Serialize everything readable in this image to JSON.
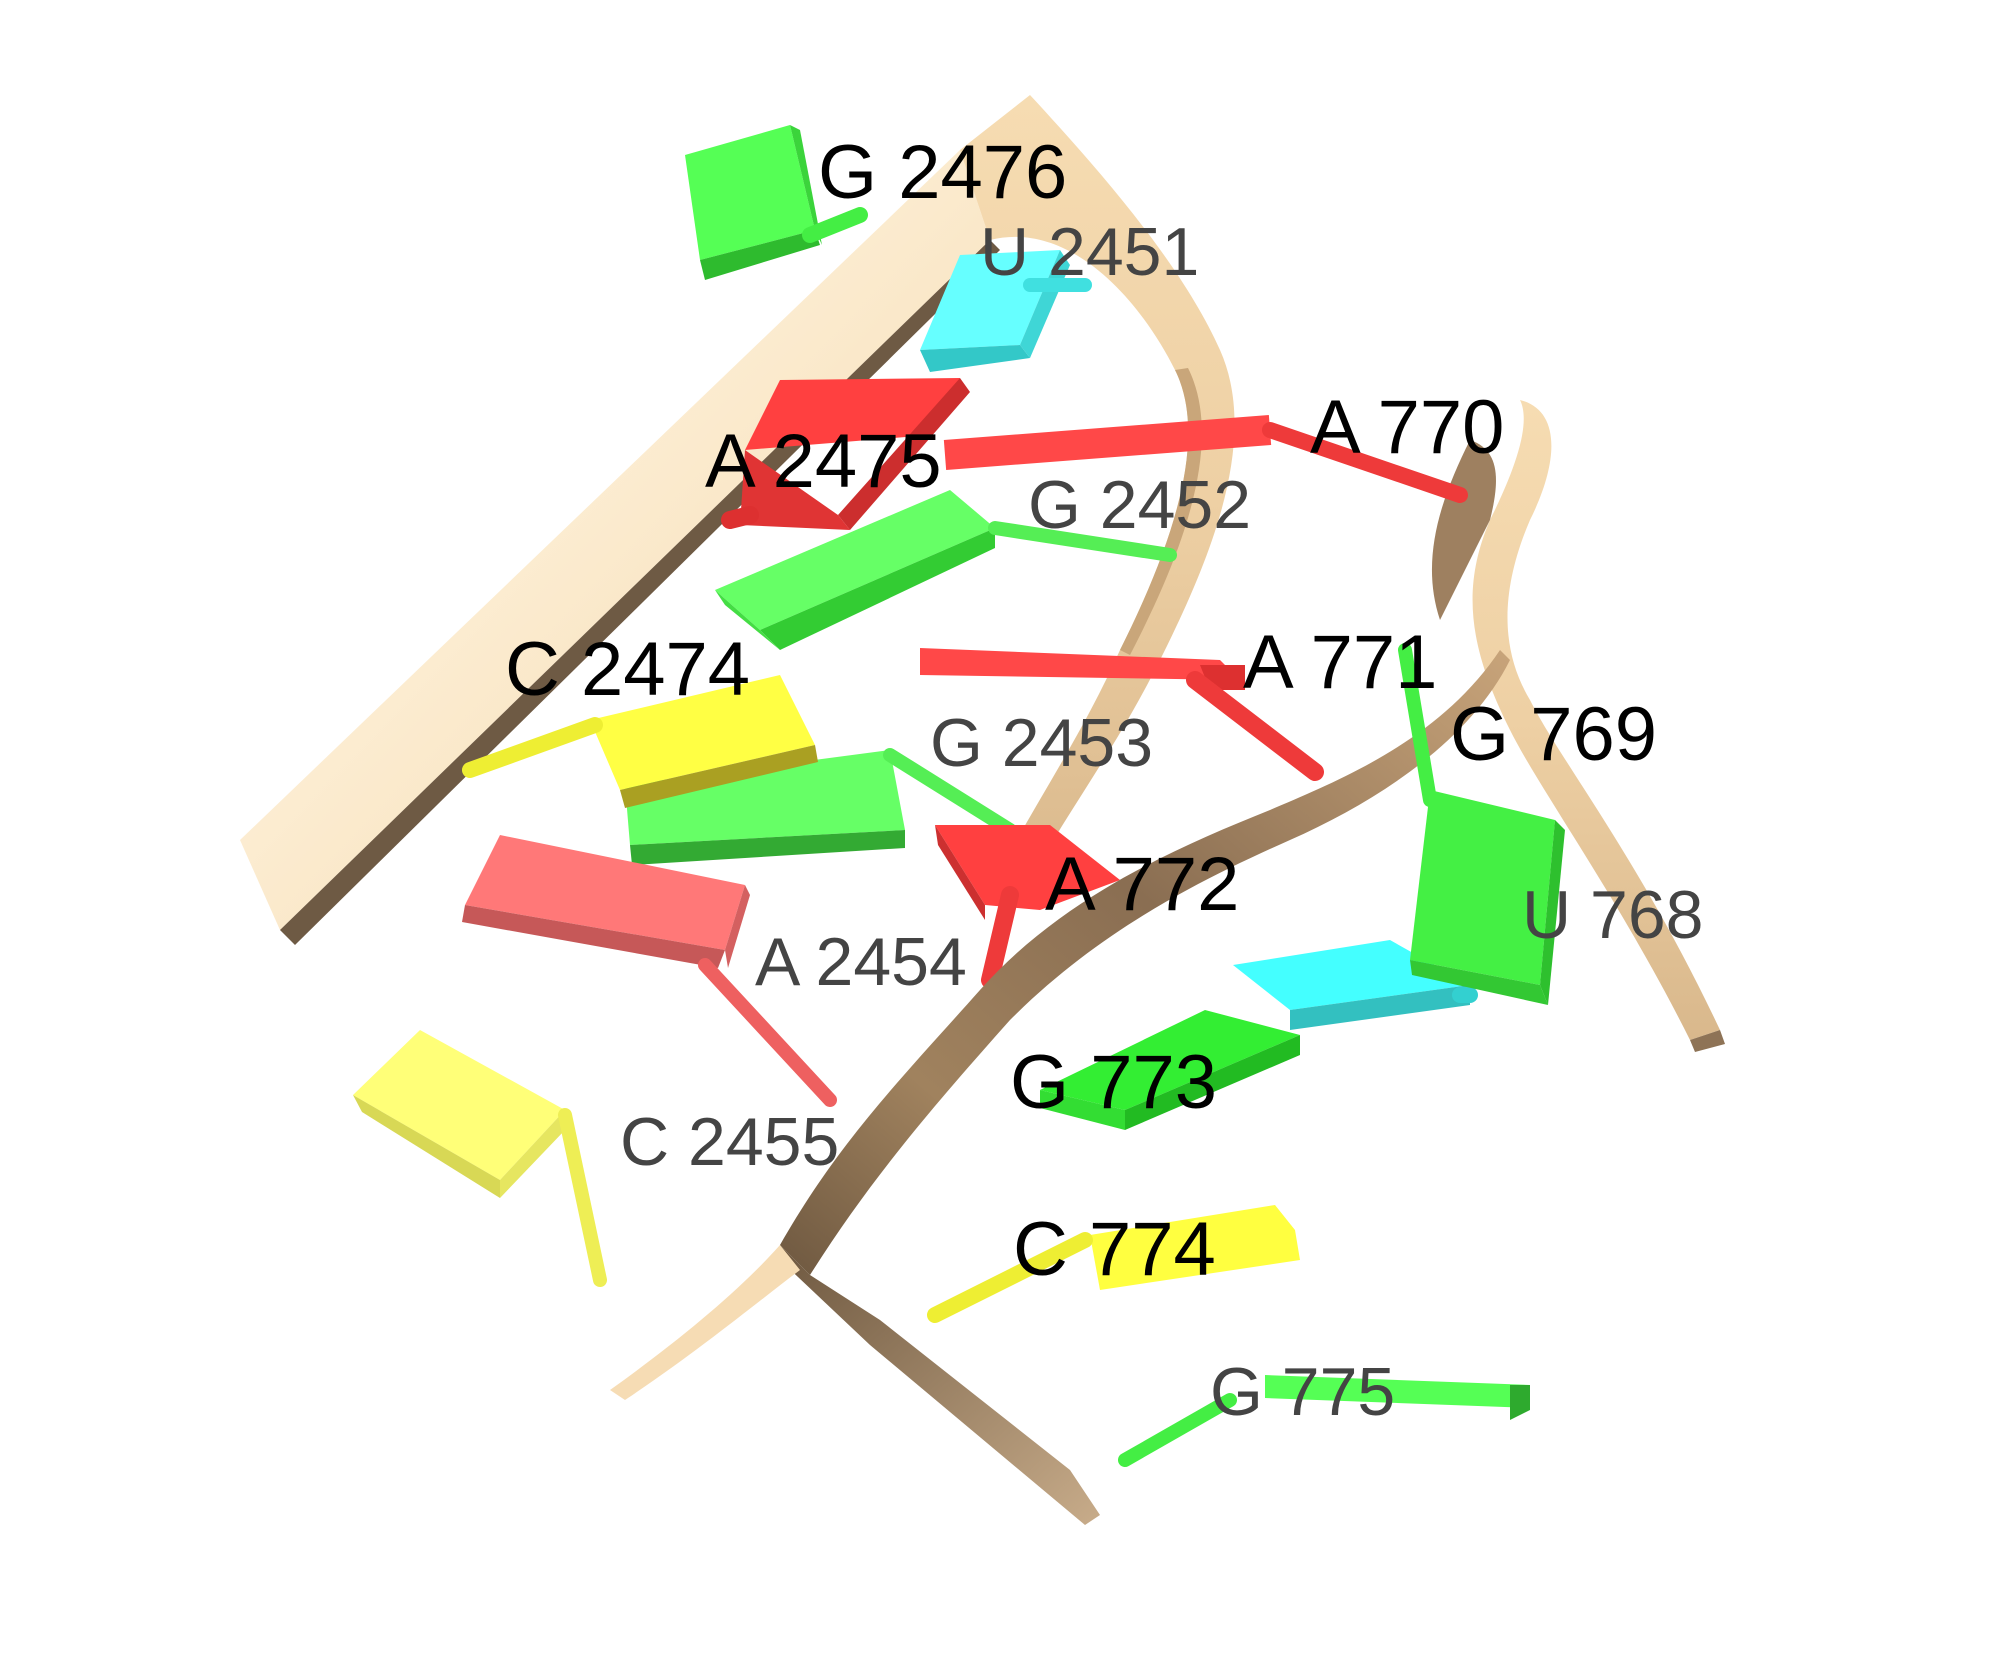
{
  "colors": {
    "A": "#ff4040",
    "G": "#40f040",
    "C": "#ffff40",
    "U": "#40ffff",
    "A_back": "#ff7070",
    "C_back": "#ffff70",
    "G_back": "#60ff60",
    "backbone_light": "#f8deb4",
    "backbone_dark": "#7a6248",
    "label_front": "#000000",
    "label_back": "#444444"
  },
  "labels": {
    "G2476": "G 2476",
    "U2451": "U 2451",
    "A2475": "A 2475",
    "A770": "A 770",
    "G2452": "G 2452",
    "C2474": "C 2474",
    "A771": "A 771",
    "G2453": "G 2453",
    "G769": "G 769",
    "A772": "A 772",
    "A2454": "A 2454",
    "U768": "U 768",
    "G773": "G 773",
    "C2455": "C 2455",
    "C774": "C 774",
    "G775": "G 775"
  }
}
